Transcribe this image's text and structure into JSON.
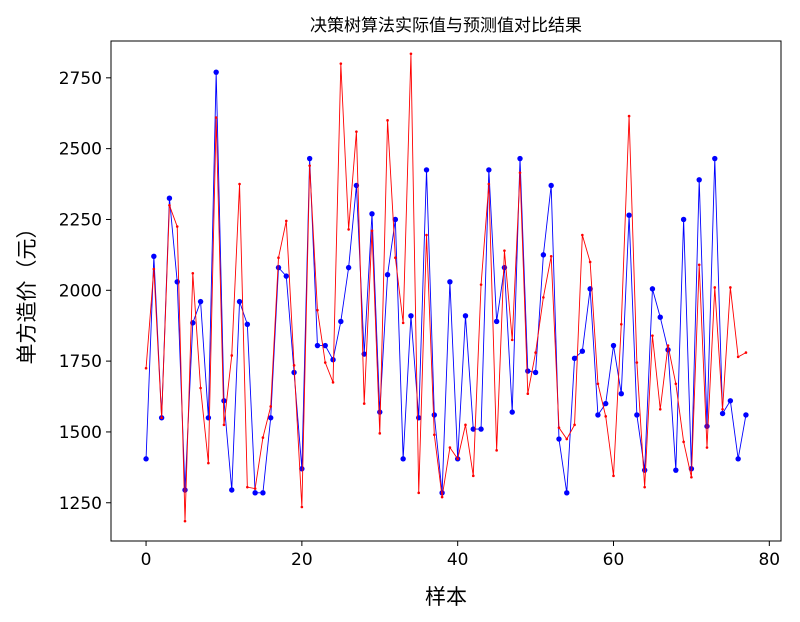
{
  "chart_data": {
    "type": "line",
    "title": "决策树算法实际值与预测值对比结果",
    "xlabel": "样本",
    "ylabel": "单方造价（元）",
    "xlim": [
      -4.5,
      81.5
    ],
    "ylim": [
      1115,
      2880
    ],
    "xticks": [
      0,
      20,
      40,
      60,
      80
    ],
    "yticks": [
      1250,
      1500,
      1750,
      2000,
      2250,
      2500,
      2750
    ],
    "grid": false,
    "legend": "none",
    "x": [
      0,
      1,
      2,
      3,
      4,
      5,
      6,
      7,
      8,
      9,
      10,
      11,
      12,
      13,
      14,
      15,
      16,
      17,
      18,
      19,
      20,
      21,
      22,
      23,
      24,
      25,
      26,
      27,
      28,
      29,
      30,
      31,
      32,
      33,
      34,
      35,
      36,
      37,
      38,
      39,
      40,
      41,
      42,
      43,
      44,
      45,
      46,
      47,
      48,
      49,
      50,
      51,
      52,
      53,
      54,
      55,
      56,
      57,
      58,
      59,
      60,
      61,
      62,
      63,
      64,
      65,
      66,
      67,
      68,
      69,
      70,
      71,
      72,
      73,
      74,
      75,
      76,
      77
    ],
    "series": [
      {
        "color": "#0000ff",
        "marker": "circle",
        "values": [
          1405,
          2120,
          1550,
          2325,
          2030,
          1295,
          1885,
          1960,
          1550,
          2770,
          1610,
          1295,
          1960,
          1880,
          1285,
          1285,
          1550,
          2080,
          2050,
          1710,
          1370,
          2465,
          1805,
          1805,
          1755,
          1890,
          2080,
          2370,
          1775,
          2270,
          1570,
          2055,
          2250,
          1405,
          1910,
          1550,
          2425,
          1560,
          1285,
          2030,
          1405,
          1910,
          1510,
          1510,
          2425,
          1890,
          2080,
          1570,
          2465,
          1715,
          1710,
          2125,
          2370,
          1475,
          1285,
          1760,
          1785,
          2005,
          1560,
          1600,
          1805,
          1635,
          2265,
          1560,
          1365,
          2005,
          1905,
          1790,
          1365,
          2250,
          1370,
          2390,
          1520,
          2465,
          1565,
          1610,
          1405,
          1560
        ]
      },
      {
        "color": "#ff0000",
        "marker": "dot",
        "values": [
          1725,
          2075,
          1550,
          2300,
          2225,
          1185,
          2060,
          1655,
          1390,
          2610,
          1525,
          1770,
          2375,
          1305,
          1300,
          1480,
          1590,
          2115,
          2245,
          1735,
          1235,
          2440,
          1930,
          1745,
          1675,
          2800,
          2215,
          2560,
          1600,
          2210,
          1495,
          2600,
          2115,
          1885,
          2835,
          1285,
          2195,
          1490,
          1270,
          1445,
          1405,
          1525,
          1345,
          2020,
          2375,
          1435,
          2140,
          1825,
          2415,
          1635,
          1780,
          1975,
          2120,
          1515,
          1475,
          1525,
          2195,
          2100,
          1670,
          1555,
          1345,
          1880,
          2615,
          1745,
          1305,
          1840,
          1580,
          1805,
          1670,
          1465,
          1340,
          2090,
          1445,
          2010,
          1580,
          2010,
          1765,
          1780
        ]
      }
    ]
  }
}
